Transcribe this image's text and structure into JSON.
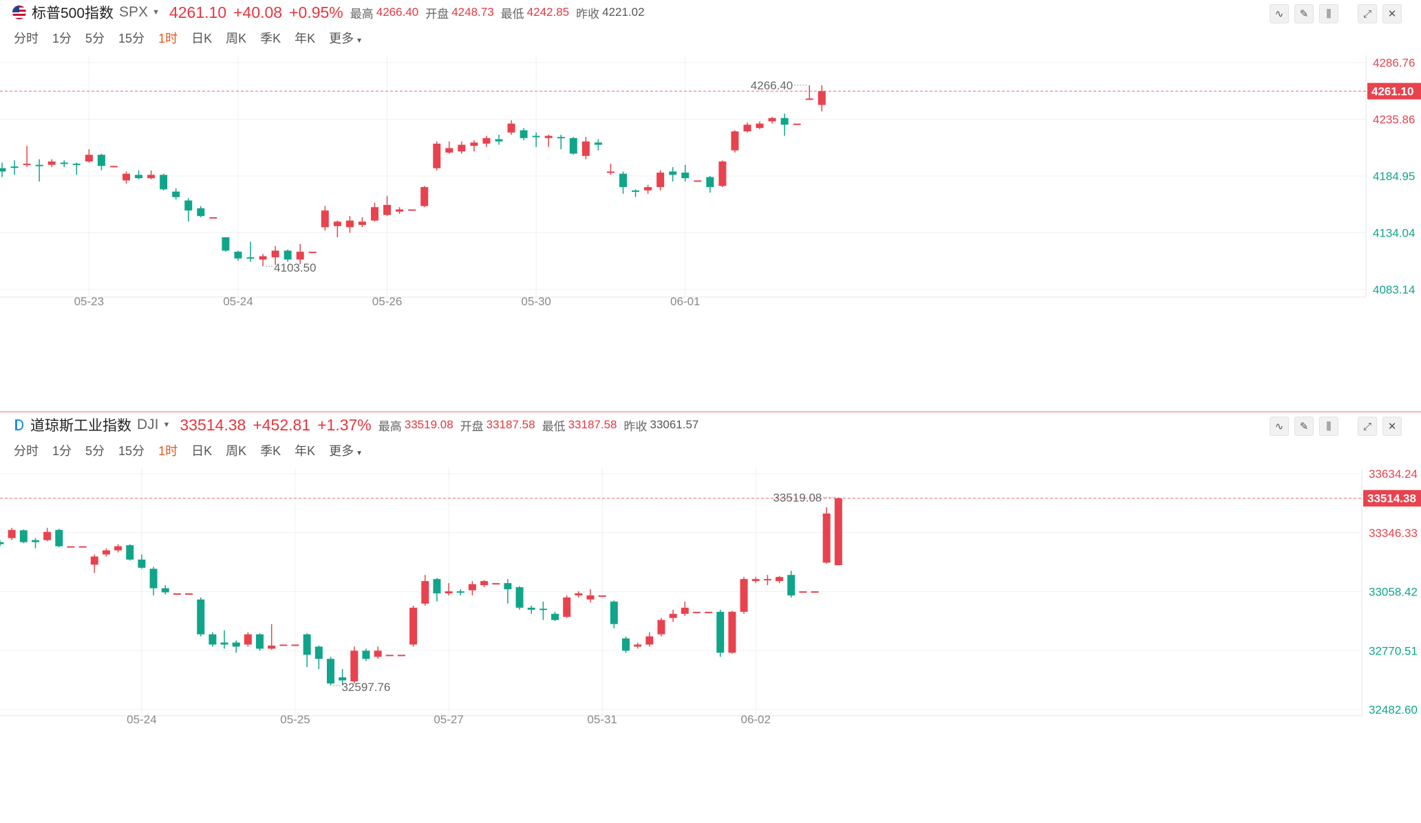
{
  "panels": [
    {
      "name": "标普500指数",
      "symbol": "SPX",
      "price": "4261.10",
      "change": "+40.08",
      "change_pct": "+0.95%",
      "high_label": "最高",
      "high": "4266.40",
      "open_label": "开盘",
      "open": "4248.73",
      "low_label": "最低",
      "low": "4242.85",
      "prev_label": "昨收",
      "prev": "4221.02",
      "icon": "us-flag-icon"
    },
    {
      "name": "道琼斯工业指数",
      "symbol": "DJI",
      "price": "33514.38",
      "change": "+452.81",
      "change_pct": "+1.37%",
      "high_label": "最高",
      "high": "33519.08",
      "open_label": "开盘",
      "open": "33187.58",
      "low_label": "最低",
      "low": "33187.58",
      "prev_label": "昨收",
      "prev": "33061.57",
      "icon": "dji-icon"
    }
  ],
  "periods": [
    "分时",
    "1分",
    "5分",
    "15分",
    "1时",
    "日K",
    "周K",
    "季K",
    "年K",
    "更多"
  ],
  "active_period": "1时",
  "toolbar_icons": [
    "indicator-icon",
    "draw-icon",
    "candle-type-icon",
    "expand-icon",
    "close-icon"
  ],
  "colors": {
    "up": "#e8424e",
    "down": "#10a58a",
    "accent": "#e8561c",
    "price_line": "#e8424e"
  },
  "chart_data": [
    {
      "type": "candlestick",
      "symbol": "SPX",
      "ylim": [
        4083.14,
        4286.76
      ],
      "y_ticks": [
        "4286.76",
        "4235.86",
        "4184.95",
        "4134.04",
        "4083.14"
      ],
      "x_ticks": [
        "05-23",
        "05-24",
        "05-26",
        "05-30",
        "06-01"
      ],
      "current_price": "4261.10",
      "max_label": "4266.40",
      "min_label": "4103.50",
      "candles": [
        [
          4192.0,
          4189.0,
          4197.0,
          4184.0
        ],
        [
          4193.5,
          4193.0,
          4199.0,
          4186.0
        ],
        [
          4195.0,
          4196.0,
          4212.0,
          4193.0
        ],
        [
          4195.0,
          4194.0,
          4200.0,
          4180.0
        ],
        [
          4195.0,
          4198.0,
          4200.0,
          4193.0
        ],
        [
          4197.0,
          4196.0,
          4199.0,
          4193.0
        ],
        [
          4196.0,
          4195.5,
          4197.0,
          4186.0
        ],
        [
          4198.0,
          4204.0,
          4209.0,
          4197.0
        ],
        [
          4204.0,
          4194.0,
          4205.0,
          4190.0
        ],
        [
          4194.0,
          4194.0,
          4194.0,
          4194.0
        ],
        [
          4181.0,
          4187.0,
          4189.0,
          4178.0
        ],
        [
          4186.0,
          4183.0,
          4190.0,
          4182.0
        ],
        [
          4183.0,
          4186.0,
          4190.0,
          4182.0
        ],
        [
          4186.0,
          4173.0,
          4187.0,
          4172.0
        ],
        [
          4171.0,
          4166.0,
          4174.0,
          4164.0
        ],
        [
          4163.0,
          4154.0,
          4165.0,
          4144.0
        ],
        [
          4156.0,
          4149.0,
          4158.0,
          4148.0
        ],
        [
          4148.0,
          4148.0,
          4148.0,
          4148.0
        ],
        [
          4130.0,
          4118.0,
          4130.0,
          4117.0
        ],
        [
          4117.0,
          4111.0,
          4118.0,
          4109.0
        ],
        [
          4112.0,
          4111.0,
          4126.0,
          4108.0
        ],
        [
          4110.0,
          4113.0,
          4115.0,
          4104.0
        ],
        [
          4112.0,
          4118.0,
          4122.0,
          4105.0
        ],
        [
          4118.0,
          4110.0,
          4119.0,
          4108.0
        ],
        [
          4110.0,
          4117.0,
          4124.0,
          4106.0
        ],
        [
          4117.0,
          4117.0,
          4117.0,
          4117.0
        ],
        [
          4139.0,
          4154.0,
          4158.0,
          4136.0
        ],
        [
          4140.0,
          4144.0,
          4145.0,
          4130.0
        ],
        [
          4139.0,
          4145.0,
          4149.0,
          4134.0
        ],
        [
          4141.0,
          4144.0,
          4148.0,
          4139.0
        ],
        [
          4145.0,
          4157.0,
          4161.0,
          4144.0
        ],
        [
          4150.0,
          4159.0,
          4167.0,
          4149.0
        ],
        [
          4153.0,
          4155.0,
          4157.0,
          4151.0
        ],
        [
          4155.0,
          4155.0,
          4155.0,
          4155.0
        ],
        [
          4158.0,
          4175.0,
          4176.0,
          4157.0
        ],
        [
          4192.0,
          4214.0,
          4216.0,
          4190.0
        ],
        [
          4206.0,
          4210.0,
          4216.0,
          4205.0
        ],
        [
          4207.0,
          4213.0,
          4216.0,
          4205.0
        ],
        [
          4212.0,
          4215.0,
          4217.0,
          4207.0
        ],
        [
          4214.0,
          4219.0,
          4221.0,
          4211.0
        ],
        [
          4218.0,
          4216.0,
          4222.0,
          4213.0
        ],
        [
          4224.0,
          4232.0,
          4235.0,
          4222.0
        ],
        [
          4226.0,
          4219.0,
          4228.0,
          4217.0
        ],
        [
          4221.0,
          4220.0,
          4224.0,
          4211.0
        ],
        [
          4219.0,
          4221.0,
          4222.0,
          4211.0
        ],
        [
          4220.0,
          4219.0,
          4222.0,
          4209.0
        ],
        [
          4219.0,
          4205.0,
          4220.0,
          4204.0
        ],
        [
          4203.0,
          4216.0,
          4220.0,
          4200.0
        ],
        [
          4215.0,
          4213.0,
          4218.0,
          4208.0
        ],
        [
          4189.0,
          4189.0,
          4196.0,
          4186.0
        ],
        [
          4187.0,
          4175.0,
          4189.0,
          4169.0
        ],
        [
          4172.0,
          4171.0,
          4173.0,
          4166.0
        ],
        [
          4172.0,
          4175.0,
          4177.0,
          4169.0
        ],
        [
          4175.0,
          4188.0,
          4190.0,
          4172.0
        ],
        [
          4189.0,
          4186.0,
          4193.0,
          4180.0
        ],
        [
          4188.0,
          4183.0,
          4195.0,
          4180.0
        ],
        [
          4181.0,
          4181.0,
          4181.0,
          4181.0
        ],
        [
          4184.0,
          4175.0,
          4185.0,
          4170.0
        ],
        [
          4176.0,
          4198.0,
          4199.0,
          4175.0
        ],
        [
          4208.0,
          4225.0,
          4226.0,
          4206.0
        ],
        [
          4225.0,
          4231.0,
          4233.0,
          4224.0
        ],
        [
          4228.0,
          4232.0,
          4234.0,
          4227.0
        ],
        [
          4234.0,
          4237.0,
          4238.0,
          4232.0
        ],
        [
          4237.0,
          4231.0,
          4241.0,
          4221.0
        ],
        [
          4232.0,
          4232.0,
          4232.0,
          4232.0
        ],
        [
          4254.0,
          4254.5,
          4266.4,
          4254.0
        ],
        [
          4248.73,
          4261.1,
          4266.4,
          4242.85
        ]
      ]
    },
    {
      "type": "candlestick",
      "symbol": "DJI",
      "ylim": [
        32482.6,
        33634.24
      ],
      "y_ticks": [
        "33634.24",
        "33346.33",
        "33058.42",
        "32770.51",
        "32482.60"
      ],
      "x_ticks": [
        "05-24",
        "05-25",
        "05-27",
        "05-31",
        "06-02"
      ],
      "current_price": "33514.38",
      "max_label": "33519.08",
      "min_label": "32597.76",
      "candles": [
        [
          33300.0,
          33290.0,
          33310.0,
          33280.0
        ],
        [
          33320.0,
          33360.0,
          33370.0,
          33310.0
        ],
        [
          33358.0,
          33300.0,
          33362.0,
          33295.0
        ],
        [
          33310.0,
          33300.0,
          33320.0,
          33270.0
        ],
        [
          33310.0,
          33350.0,
          33370.0,
          33305.0
        ],
        [
          33360.0,
          33280.0,
          33365.0,
          33275.0
        ],
        [
          33280.0,
          33280.0,
          33280.0,
          33280.0
        ],
        [
          33280.0,
          33280.0,
          33280.0,
          33280.0
        ],
        [
          33190.0,
          33230.0,
          33240.0,
          33150.0
        ],
        [
          33240.0,
          33260.0,
          33270.0,
          33230.0
        ],
        [
          33260.0,
          33280.0,
          33290.0,
          33250.0
        ],
        [
          33285.0,
          33215.0,
          33290.0,
          33210.0
        ],
        [
          33215.0,
          33175.0,
          33240.0,
          33170.0
        ],
        [
          33170.0,
          33075.0,
          33180.0,
          33040.0
        ],
        [
          33075.0,
          33055.0,
          33090.0,
          33045.0
        ],
        [
          33050.0,
          33050.0,
          33050.0,
          33050.0
        ],
        [
          33050.0,
          33050.0,
          33050.0,
          33050.0
        ],
        [
          33020.0,
          32850.0,
          33030.0,
          32840.0
        ],
        [
          32850.0,
          32800.0,
          32860.0,
          32790.0
        ],
        [
          32810.0,
          32800.0,
          32870.0,
          32780.0
        ],
        [
          32810.0,
          32790.0,
          32820.0,
          32760.0
        ],
        [
          32800.0,
          32850.0,
          32860.0,
          32790.0
        ],
        [
          32850.0,
          32780.0,
          32855.0,
          32770.0
        ],
        [
          32780.0,
          32795.0,
          32900.0,
          32775.0
        ],
        [
          32800.0,
          32800.0,
          32800.0,
          32800.0
        ],
        [
          32800.0,
          32800.0,
          32800.0,
          32800.0
        ],
        [
          32850.0,
          32750.0,
          32855.0,
          32690.0
        ],
        [
          32790.0,
          32730.0,
          32795.0,
          32680.0
        ],
        [
          32730.0,
          32610.0,
          32740.0,
          32600.0
        ],
        [
          32640.0,
          32625.0,
          32680.0,
          32600.0
        ],
        [
          32620.0,
          32770.0,
          32790.0,
          32610.0
        ],
        [
          32770.0,
          32730.0,
          32780.0,
          32720.0
        ],
        [
          32740.0,
          32770.0,
          32790.0,
          32730.0
        ],
        [
          32750.0,
          32750.0,
          32750.0,
          32750.0
        ],
        [
          32750.0,
          32750.0,
          32750.0,
          32750.0
        ],
        [
          32800.0,
          32980.0,
          32990.0,
          32790.0
        ],
        [
          33000.0,
          33110.0,
          33140.0,
          32990.0
        ],
        [
          33120.0,
          33050.0,
          33125.0,
          33010.0
        ],
        [
          33050.0,
          33060.0,
          33100.0,
          33040.0
        ],
        [
          33060.0,
          33055.0,
          33070.0,
          33040.0
        ],
        [
          33065.0,
          33095.0,
          33110.0,
          33040.0
        ],
        [
          33090.0,
          33110.0,
          33115.0,
          33080.0
        ],
        [
          33100.0,
          33100.0,
          33100.0,
          33100.0
        ],
        [
          33100.0,
          33070.0,
          33120.0,
          33000.0
        ],
        [
          33080.0,
          32980.0,
          33085.0,
          32970.0
        ],
        [
          32980.0,
          32970.0,
          32990.0,
          32950.0
        ],
        [
          32975.0,
          32970.0,
          33010.0,
          32920.0
        ],
        [
          32950.0,
          32920.0,
          32960.0,
          32915.0
        ],
        [
          32935.0,
          33030.0,
          33040.0,
          32930.0
        ],
        [
          33040.0,
          33050.0,
          33060.0,
          33030.0
        ],
        [
          33020.0,
          33040.0,
          33070.0,
          33005.0
        ],
        [
          33040.0,
          33040.0,
          33040.0,
          33040.0
        ],
        [
          33010.0,
          32900.0,
          33015.0,
          32880.0
        ],
        [
          32830.0,
          32770.0,
          32840.0,
          32760.0
        ],
        [
          32790.0,
          32800.0,
          32810.0,
          32780.0
        ],
        [
          32800.0,
          32840.0,
          32860.0,
          32790.0
        ],
        [
          32850.0,
          32920.0,
          32930.0,
          32840.0
        ],
        [
          32930.0,
          32950.0,
          32970.0,
          32910.0
        ],
        [
          32950.0,
          32980.0,
          33010.0,
          32940.0
        ],
        [
          32960.0,
          32960.0,
          32960.0,
          32960.0
        ],
        [
          32960.0,
          32960.0,
          32960.0,
          32960.0
        ],
        [
          32960.0,
          32760.0,
          32970.0,
          32740.0
        ],
        [
          32760.0,
          32960.0,
          32965.0,
          32755.0
        ],
        [
          32960.0,
          33120.0,
          33130.0,
          32950.0
        ],
        [
          33110.0,
          33120.0,
          33130.0,
          33100.0
        ],
        [
          33120.0,
          33120.0,
          33140.0,
          33090.0
        ],
        [
          33110.0,
          33130.0,
          33135.0,
          33100.0
        ],
        [
          33140.0,
          33040.0,
          33160.0,
          33030.0
        ],
        [
          33060.0,
          33060.0,
          33060.0,
          33060.0
        ],
        [
          33060.0,
          33060.0,
          33060.0,
          33060.0
        ],
        [
          33200.0,
          33440.0,
          33470.0,
          33195.0
        ],
        [
          33187.58,
          33514.38,
          33519.08,
          33187.58
        ]
      ]
    }
  ]
}
